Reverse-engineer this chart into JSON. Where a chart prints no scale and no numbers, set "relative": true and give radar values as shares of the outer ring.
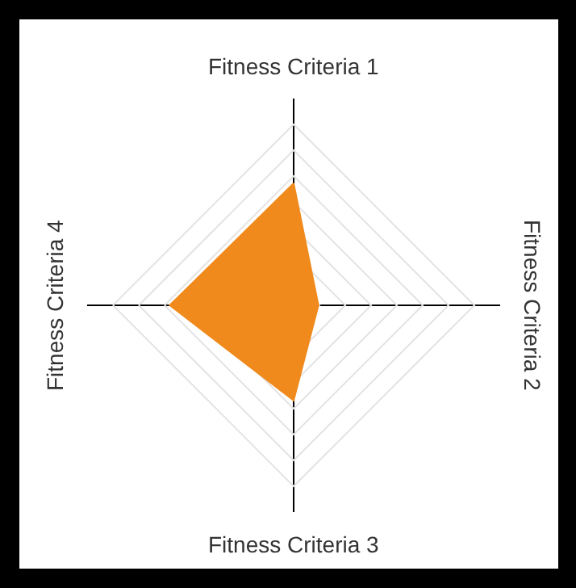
{
  "chart_data": {
    "type": "radar",
    "relative": true,
    "grid": true,
    "marker": "none",
    "categories": [
      "Fitness Criteria 1",
      "Fitness Criteria 2",
      "Fitness Criteria 3",
      "Fitness Criteria 4"
    ],
    "series": [
      {
        "color": "#f08a1c",
        "values": [
          0.59,
          0.12,
          0.46,
          0.6
        ]
      }
    ]
  }
}
